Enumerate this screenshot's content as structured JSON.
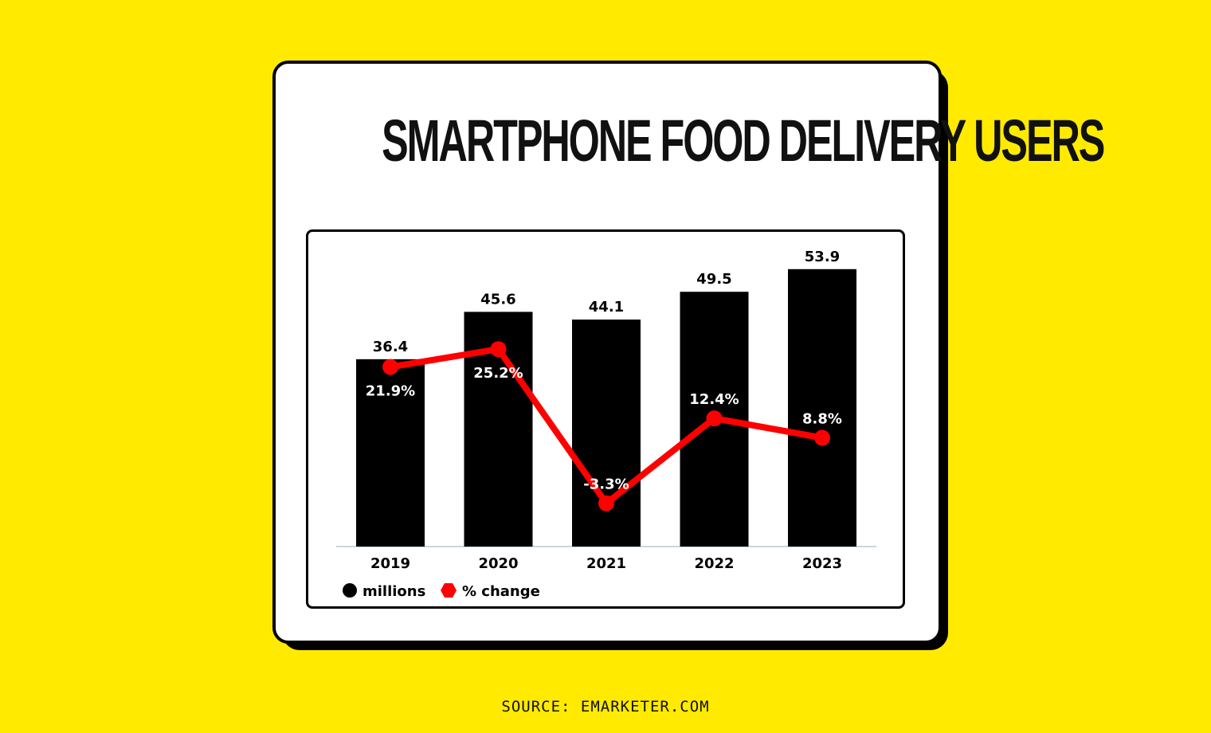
{
  "title": "SMARTPHONE FOOD DELIVERY USERS",
  "source": "SOURCE: EMARKETER.COM",
  "colors": {
    "background": "#FFEA00",
    "bars": "#000000",
    "line": "#FF0000",
    "axis": "#C9D6E4"
  },
  "chart_data": {
    "type": "bar",
    "title": "SMARTPHONE FOOD DELIVERY USERS",
    "categories": [
      "2019",
      "2020",
      "2021",
      "2022",
      "2023"
    ],
    "series": [
      {
        "name": "millions",
        "type": "bar",
        "values": [
          36.4,
          45.6,
          44.1,
          49.5,
          53.9
        ],
        "labels": [
          "36.4",
          "45.6",
          "44.1",
          "49.5",
          "53.9"
        ]
      },
      {
        "name": "% change",
        "type": "line",
        "values": [
          21.9,
          25.2,
          -3.3,
          12.4,
          8.8
        ],
        "labels": [
          "21.9%",
          "25.2%",
          "-3.3%",
          "12.4%",
          "8.8%"
        ]
      }
    ],
    "ylim": [
      0,
      60
    ],
    "line_ylim": [
      -10,
      60
    ],
    "legend": {
      "position": "bottom-left",
      "items": [
        "millions",
        "% change"
      ]
    },
    "grid": false,
    "xlabel": "",
    "ylabel": ""
  }
}
